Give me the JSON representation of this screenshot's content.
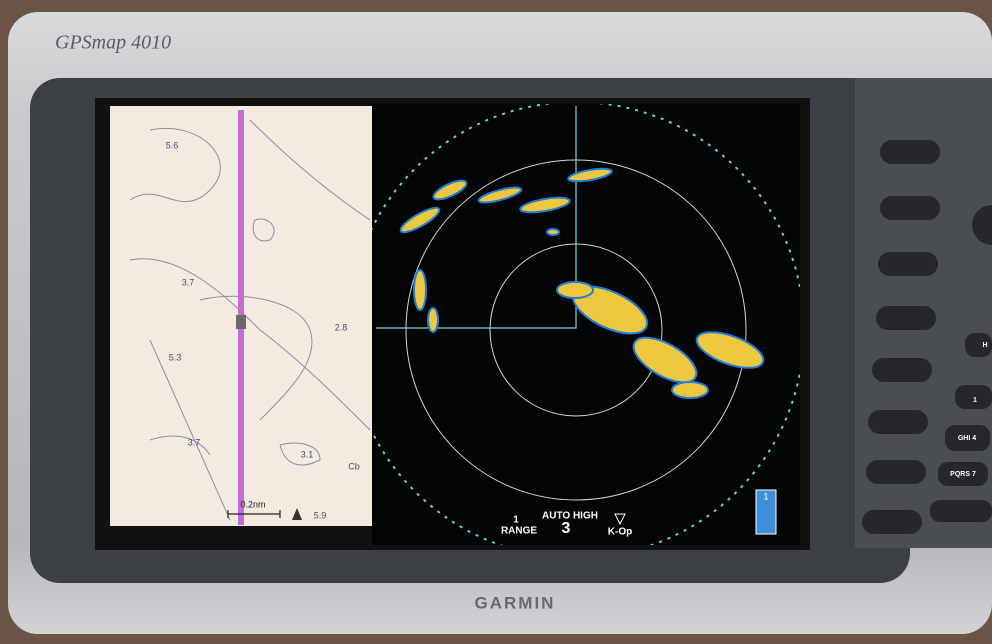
{
  "device": {
    "model": "GPSmap 4010",
    "brand": "GARMIN"
  },
  "chart_panel": {
    "depths": [
      "5.6",
      "3.7",
      "2.8",
      "5.3",
      "3.7",
      "3.1"
    ],
    "label": "Cb",
    "scale": "0.2nm",
    "scale_depth": "5.9"
  },
  "radar_panel": {
    "ring_value": "1",
    "mode": "AUTO HIGH",
    "range_label": "RANGE",
    "range_value": "3",
    "status": "K-Op",
    "page_number": "1"
  },
  "keypad": {
    "keys": [
      "1",
      "GHI 4",
      "PQRS 7",
      "H"
    ]
  }
}
